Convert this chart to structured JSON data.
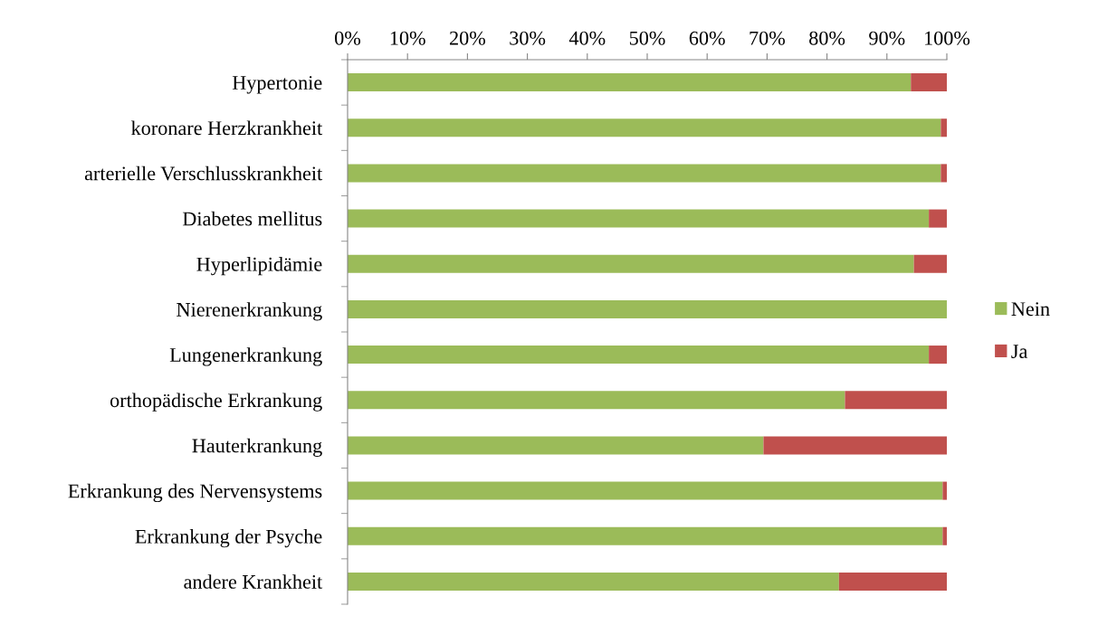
{
  "chart_data": {
    "type": "bar",
    "orientation": "horizontal",
    "stacked": true,
    "categories": [
      "Hypertonie",
      "koronare Herzkrankheit",
      "arterielle Verschlusskrankheit",
      "Diabetes mellitus",
      "Hyperlipidämie",
      "Nierenerkrankung",
      "Lungenerkrankung",
      "orthopädische Erkrankung",
      "Hauterkrankung",
      "Erkrankung des Nervensystems",
      "Erkrankung der Psyche",
      "andere Krankheit"
    ],
    "series": [
      {
        "name": "Nein",
        "color": "#9bbb59",
        "values": [
          94,
          99,
          99,
          97,
          94.5,
          100,
          97,
          83,
          69.4,
          99.3,
          99.3,
          82
        ]
      },
      {
        "name": "Ja",
        "color": "#c0504d",
        "values": [
          6,
          1,
          1,
          3,
          5.5,
          0,
          3,
          17,
          30.6,
          0.7,
          0.7,
          18
        ]
      }
    ],
    "xlim": [
      0,
      100
    ],
    "xticks": [
      {
        "value": 0,
        "label": "0%"
      },
      {
        "value": 10,
        "label": "10%"
      },
      {
        "value": 20,
        "label": "20%"
      },
      {
        "value": 30,
        "label": "30%"
      },
      {
        "value": 40,
        "label": "40%"
      },
      {
        "value": 50,
        "label": "50%"
      },
      {
        "value": 60,
        "label": "60%"
      },
      {
        "value": 70,
        "label": "70%"
      },
      {
        "value": 80,
        "label": "80%"
      },
      {
        "value": 90,
        "label": "90%"
      },
      {
        "value": 100,
        "label": "100%"
      }
    ],
    "grid": false,
    "legend": "right"
  }
}
